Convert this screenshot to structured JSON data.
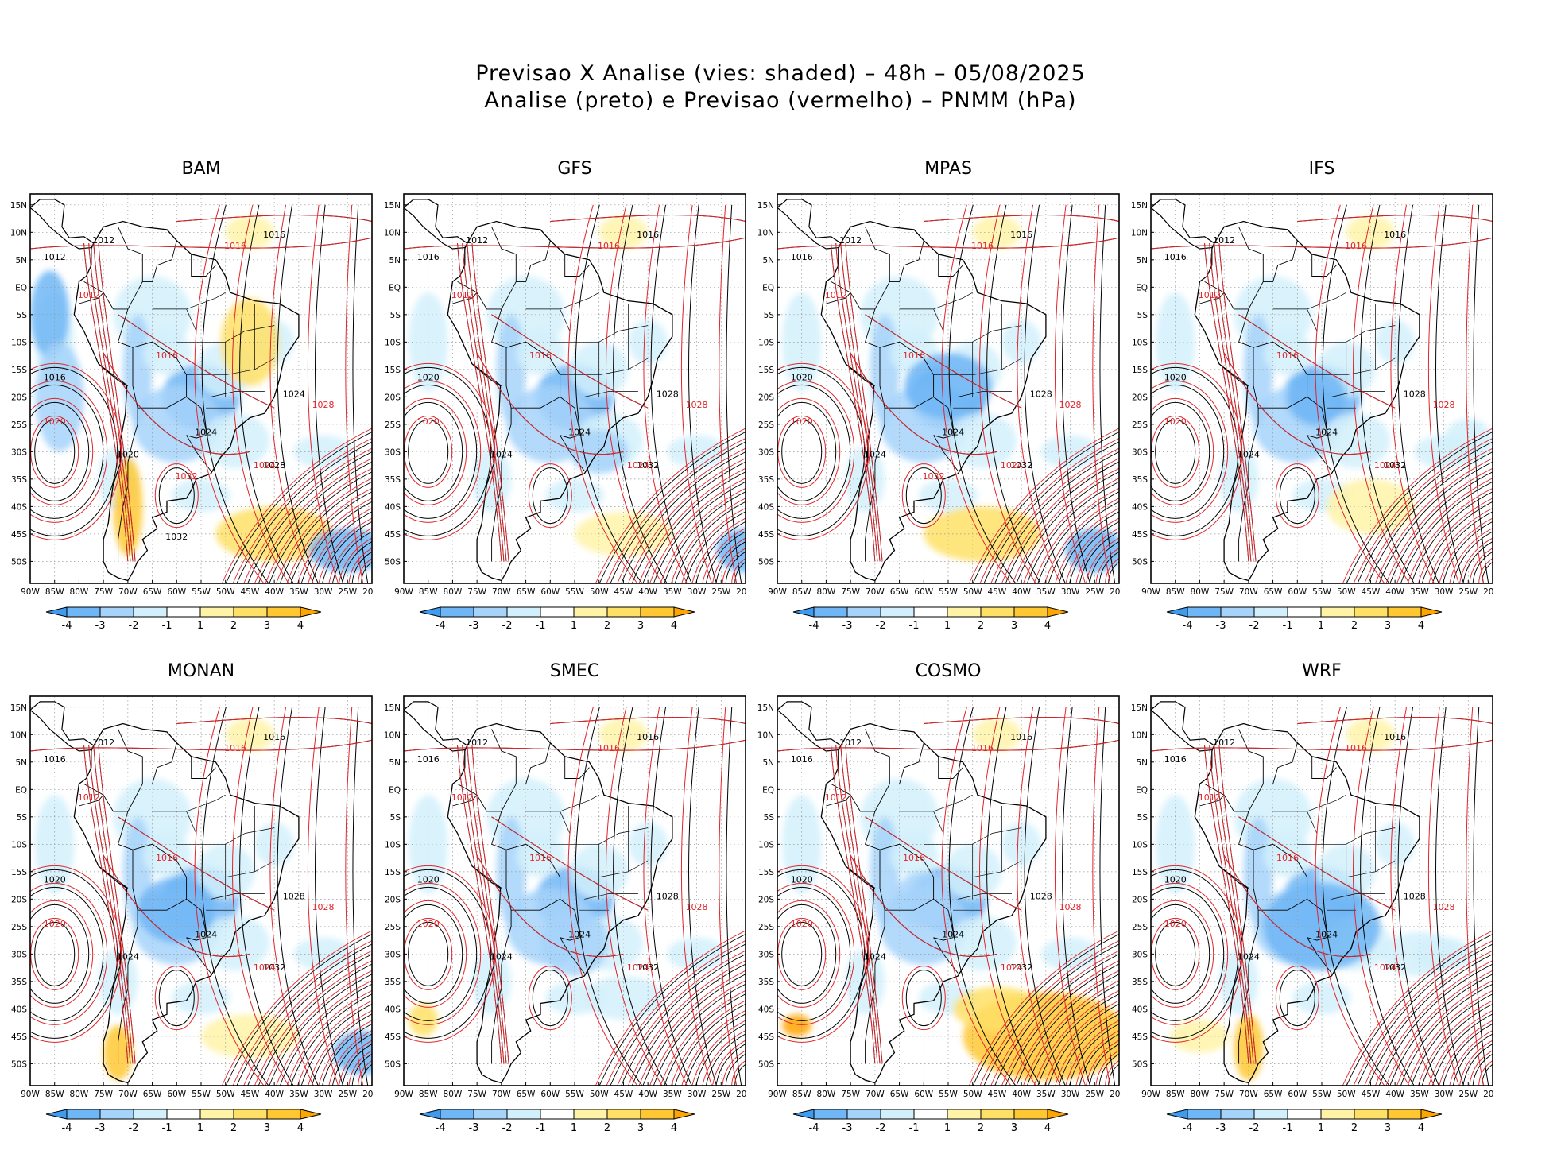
{
  "title": {
    "line1": "Previsao X Analise (vies: shaded) – 48h – 05/08/2025",
    "line2": "Analise (preto) e Previsao (vermelho) – PNMM (hPa)"
  },
  "lat_labels": [
    "15N",
    "10N",
    "5N",
    "EQ",
    "5S",
    "10S",
    "15S",
    "20S",
    "25S",
    "30S",
    "35S",
    "40S",
    "45S",
    "50S"
  ],
  "lon_labels": [
    "90W",
    "85W",
    "80W",
    "75W",
    "70W",
    "65W",
    "60W",
    "55W",
    "50W",
    "45W",
    "40W",
    "35W",
    "30W",
    "25W",
    "20W"
  ],
  "colorbar": {
    "labels": [
      "-4",
      "-3",
      "-2",
      "-1",
      "1",
      "2",
      "3",
      "4"
    ],
    "colors": [
      "#3d9bf0",
      "#6fb6f6",
      "#a6d3fa",
      "#d2f0fb",
      "#ffffff",
      "#fff3a8",
      "#ffe066",
      "#ffc833",
      "#ffa500"
    ]
  },
  "colors": {
    "analysis": "#000000",
    "forecast": "#e0252a"
  },
  "panels": [
    {
      "name": "BAM",
      "labels_black": [
        "1016",
        "1012",
        "1012",
        "1016",
        "1020",
        "1024",
        "1024",
        "1028",
        "1032"
      ],
      "labels_red": [
        "1016",
        "1012",
        "1016",
        "1020",
        "1024",
        "1028",
        "1032"
      ]
    },
    {
      "name": "GFS",
      "labels_black": [
        "1016",
        "1012",
        "1016",
        "1020",
        "1024",
        "1024",
        "1028",
        "1032"
      ],
      "labels_red": [
        "1016",
        "1012",
        "1016",
        "1020",
        "1024",
        "1028"
      ]
    },
    {
      "name": "MPAS",
      "labels_black": [
        "1016",
        "1012",
        "1016",
        "1020",
        "1024",
        "1024",
        "1028",
        "1032"
      ],
      "labels_red": [
        "1016",
        "1012",
        "1016",
        "1020",
        "1024",
        "1028",
        "1032"
      ]
    },
    {
      "name": "IFS",
      "labels_black": [
        "1016",
        "1012",
        "1016",
        "1020",
        "1024",
        "1024",
        "1028",
        "1032"
      ],
      "labels_red": [
        "1016",
        "1012",
        "1016",
        "1020",
        "1024",
        "1028"
      ]
    },
    {
      "name": "MONAN",
      "labels_black": [
        "1016",
        "1012",
        "1016",
        "1020",
        "1024",
        "1024",
        "1028",
        "1032"
      ],
      "labels_red": [
        "1016",
        "1012",
        "1016",
        "1020",
        "1024",
        "1028"
      ]
    },
    {
      "name": "SMEC",
      "labels_black": [
        "1016",
        "1012",
        "1016",
        "1020",
        "1024",
        "1024",
        "1028",
        "1032"
      ],
      "labels_red": [
        "1016",
        "1012",
        "1016",
        "1020",
        "1024",
        "1028"
      ]
    },
    {
      "name": "COSMO",
      "labels_black": [
        "1016",
        "1012",
        "1016",
        "1020",
        "1024",
        "1024",
        "1028",
        "1032"
      ],
      "labels_red": [
        "1016",
        "1012",
        "1016",
        "1020",
        "1024",
        "1028"
      ]
    },
    {
      "name": "WRF",
      "labels_black": [
        "1016",
        "1012",
        "1016",
        "1020",
        "1024",
        "1024",
        "1028",
        "1032"
      ],
      "labels_red": [
        "1016",
        "1012",
        "1016",
        "1020",
        "1024",
        "1028"
      ]
    }
  ]
}
